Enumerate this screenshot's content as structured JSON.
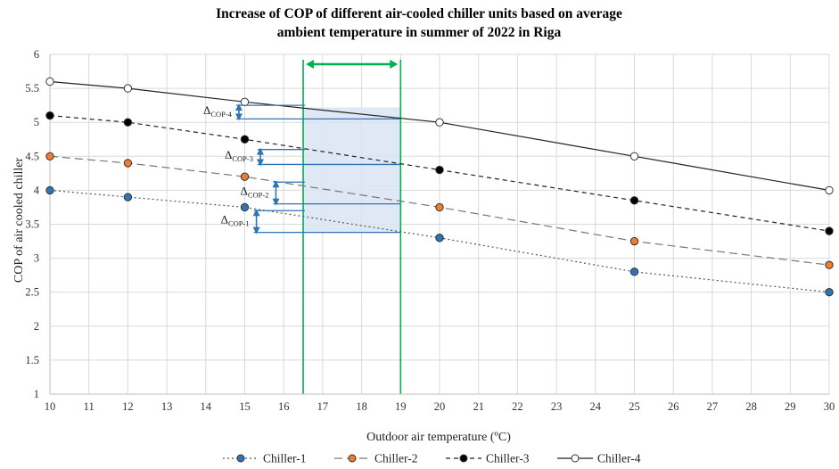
{
  "chart_data": {
    "type": "line",
    "title_line1": "Increase of COP of different air-cooled chiller units based on average",
    "title_line2": "ambient temperature in summer of 2022 in Riga",
    "xlabel": "Outdoor air temperature (ºC)",
    "ylabel": "COP of air cooled chiller",
    "xlim": [
      10,
      30
    ],
    "ylim": [
      1,
      6
    ],
    "x_ticks": [
      "10",
      "11",
      "12",
      "13",
      "14",
      "15",
      "16",
      "17",
      "18",
      "19",
      "20",
      "21",
      "22",
      "23",
      "24",
      "25",
      "26",
      "27",
      "28",
      "29",
      "30"
    ],
    "y_ticks": [
      "1",
      "1.5",
      "2",
      "2.5",
      "3",
      "3.5",
      "4",
      "4.5",
      "5",
      "5.5",
      "6"
    ],
    "x": [
      10,
      12,
      15,
      20,
      25,
      30
    ],
    "series": [
      {
        "name": "Chiller-1",
        "values": [
          4.0,
          3.9,
          3.75,
          3.3,
          2.8,
          2.5
        ],
        "marker_fill": "#2E75B6",
        "line_style": "dotted",
        "line_color": "#555555"
      },
      {
        "name": "Chiller-2",
        "values": [
          4.5,
          4.4,
          4.2,
          3.75,
          3.25,
          2.9
        ],
        "marker_fill": "#ED7D31",
        "line_style": "longdash",
        "line_color": "#777777"
      },
      {
        "name": "Chiller-3",
        "values": [
          5.1,
          5.0,
          4.75,
          4.3,
          3.85,
          3.4
        ],
        "marker_fill": "#000000",
        "line_style": "dashed",
        "line_color": "#222222"
      },
      {
        "name": "Chiller-4",
        "values": [
          5.6,
          5.5,
          5.3,
          5.0,
          4.5,
          4.0
        ],
        "marker_fill": "#FFFFFF",
        "line_style": "solid",
        "line_color": "#222222"
      }
    ],
    "shaded_range": {
      "x_start": 16.5,
      "x_end": 19.0,
      "y_top": 5.22,
      "color": "#DAE3F3"
    },
    "range_lines_color": "#00B050",
    "arrow_color": "#2E75B6",
    "delta_labels": [
      {
        "symbol": "Δ",
        "subscript": "COP-4",
        "x": 14.85,
        "y_top": 5.25,
        "y_bottom": 5.05
      },
      {
        "symbol": "Δ",
        "subscript": "COP-3",
        "x": 15.4,
        "y_top": 4.6,
        "y_bottom": 4.38
      },
      {
        "symbol": "Δ",
        "subscript": "COP-2",
        "x": 15.8,
        "y_top": 4.12,
        "y_bottom": 3.8
      },
      {
        "symbol": "Δ",
        "subscript": "COP-1",
        "x": 15.3,
        "y_top": 3.7,
        "y_bottom": 3.38
      }
    ],
    "legend_position": "bottom",
    "grid": true
  }
}
